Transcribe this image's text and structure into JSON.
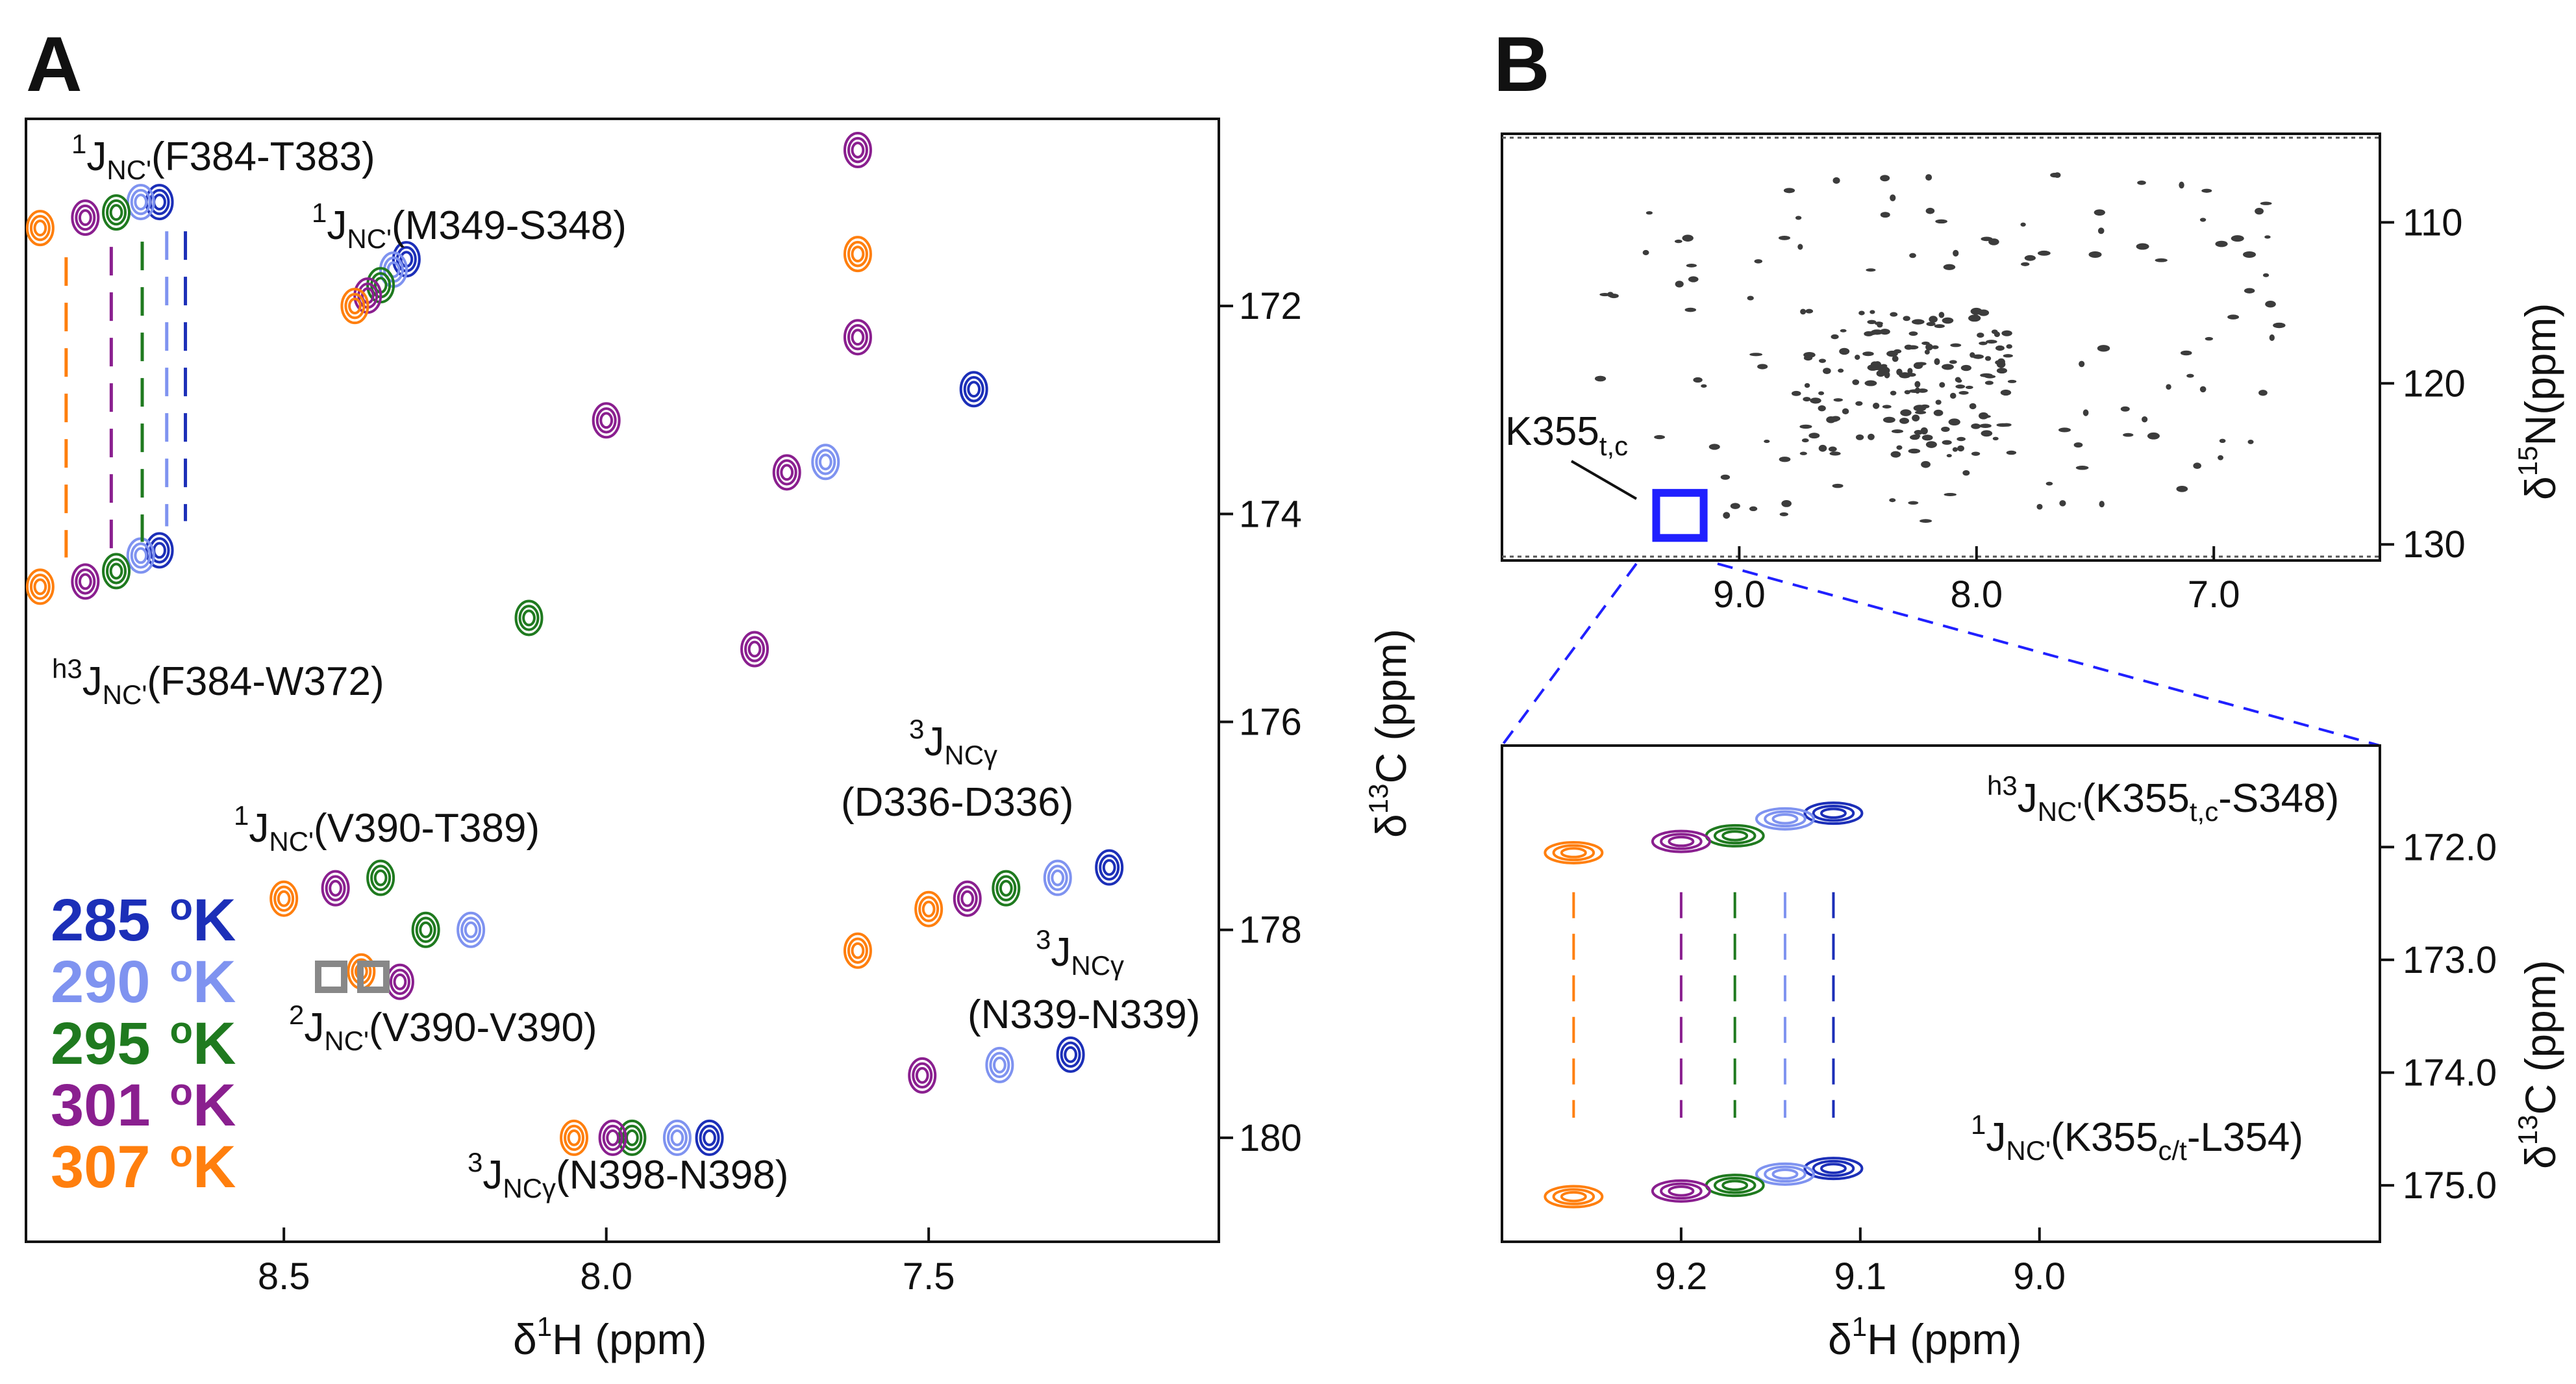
{
  "figure": {
    "panels": [
      {
        "letter": "A"
      },
      {
        "letter": "B"
      }
    ]
  },
  "colors": {
    "285": "#1c2fb8",
    "290": "#7f93f0",
    "295": "#1f7a1f",
    "301": "#8a1f8f",
    "307": "#ff7f0e",
    "overview": "#3c3c3c",
    "box": "#2020ff"
  },
  "legend": {
    "entries": [
      {
        "temp": "285",
        "unit": "K",
        "color": "#1c2fb8"
      },
      {
        "temp": "290",
        "unit": "K",
        "color": "#7f93f0"
      },
      {
        "temp": "295",
        "unit": "K",
        "color": "#1f7a1f"
      },
      {
        "temp": "301",
        "unit": "K",
        "color": "#8a1f8f"
      },
      {
        "temp": "307",
        "unit": "K",
        "color": "#ff7f0e"
      }
    ]
  },
  "panelA": {
    "annotations": {
      "f384_t383": {
        "sup": "1",
        "main": "J",
        "sub": "NC'",
        "rest": "(F384-T383)"
      },
      "m349_s348": {
        "sup": "1",
        "main": "J",
        "sub": "NC'",
        "rest": "(M349-S348)"
      },
      "f384_w372": {
        "sup": "h3",
        "main": "J",
        "sub": "NC'",
        "rest": "(F384-W372)"
      },
      "v390_t389": {
        "sup": "1",
        "main": "J",
        "sub": "NC'",
        "rest": "(V390-T389)"
      },
      "v390_v390": {
        "sup": "2",
        "main": "J",
        "sub": "NC'",
        "rest": "(V390-V390)"
      },
      "n398_n398": {
        "sup": "3",
        "main": "J",
        "sub": "NCγ",
        "rest": "(N398-N398)"
      },
      "d336_a": {
        "sup": "3",
        "main": "J",
        "sub": "NCγ"
      },
      "d336_b": {
        "rest": "(D336-D336)"
      },
      "n339_a": {
        "sup": "3",
        "main": "J",
        "sub": "NCγ"
      },
      "n339_b": {
        "rest": "(N339-N339)"
      }
    }
  },
  "panelB": {
    "overview_label": {
      "main": "K355",
      "sub": "t,c"
    },
    "annotations": {
      "k355_s348": {
        "sup": "h3",
        "main": "J",
        "sub": "NC'",
        "rest": "(K355",
        "sub2": "t,c",
        "rest2": "-S348)"
      },
      "k355_l354": {
        "sup": "1",
        "main": "J",
        "sub": "NC'",
        "rest": "(K355",
        "sub2": "c/t",
        "rest2": "-L354)"
      }
    }
  },
  "chart_data": [
    {
      "type": "scatter",
      "title": "A",
      "xlabel": {
        "pre": "δ",
        "sup": "1",
        "post": "H (ppm)"
      },
      "ylabel": {
        "pre": "δ",
        "sup": "13",
        "post": "C (ppm)"
      },
      "xlim": [
        8.9,
        7.05
      ],
      "ylim": [
        181.0,
        170.2
      ],
      "xticks": [
        8.5,
        8.0,
        7.5
      ],
      "xticklabels": [
        "8.5",
        "8.0",
        "7.5"
      ],
      "yticks": [
        172,
        174,
        176,
        178,
        180
      ],
      "yticklabels": [
        "172",
        "174",
        "176",
        "178",
        "180"
      ],
      "series": [
        {
          "name": "285 K",
          "color": "#1c2fb8",
          "points": [
            {
              "x": 8.693,
              "y": 171.0
            },
            {
              "x": 8.693,
              "y": 174.35
            },
            {
              "x": 8.31,
              "y": 171.55
            },
            {
              "x": 7.84,
              "y": 180.0
            },
            {
              "x": 7.22,
              "y": 177.4
            },
            {
              "x": 7.28,
              "y": 179.2
            },
            {
              "x": 7.43,
              "y": 172.8
            }
          ]
        },
        {
          "name": "290 K",
          "color": "#7f93f0",
          "points": [
            {
              "x": 8.722,
              "y": 171.0
            },
            {
              "x": 8.722,
              "y": 174.4
            },
            {
              "x": 8.33,
              "y": 171.65
            },
            {
              "x": 7.89,
              "y": 180.0
            },
            {
              "x": 7.3,
              "y": 177.5
            },
            {
              "x": 7.39,
              "y": 179.3
            },
            {
              "x": 7.66,
              "y": 173.5
            },
            {
              "x": 8.21,
              "y": 178.0
            }
          ]
        },
        {
          "name": "295 K",
          "color": "#1f7a1f",
          "points": [
            {
              "x": 8.76,
              "y": 171.1
            },
            {
              "x": 8.76,
              "y": 174.55
            },
            {
              "x": 8.35,
              "y": 171.8
            },
            {
              "x": 7.96,
              "y": 180.0
            },
            {
              "x": 7.38,
              "y": 177.6
            },
            {
              "x": 8.35,
              "y": 177.5
            },
            {
              "x": 8.12,
              "y": 175.0
            },
            {
              "x": 8.28,
              "y": 178.0
            }
          ]
        },
        {
          "name": "301 K",
          "color": "#8a1f8f",
          "points": [
            {
              "x": 8.808,
              "y": 171.15
            },
            {
              "x": 8.808,
              "y": 174.65
            },
            {
              "x": 8.37,
              "y": 171.9
            },
            {
              "x": 7.99,
              "y": 180.0
            },
            {
              "x": 7.44,
              "y": 177.7
            },
            {
              "x": 8.42,
              "y": 177.6
            },
            {
              "x": 7.77,
              "y": 175.3
            },
            {
              "x": 7.72,
              "y": 173.6
            },
            {
              "x": 7.61,
              "y": 170.5
            },
            {
              "x": 7.61,
              "y": 172.3
            },
            {
              "x": 7.51,
              "y": 179.4
            },
            {
              "x": 8.0,
              "y": 173.1
            },
            {
              "x": 8.32,
              "y": 178.5
            }
          ]
        },
        {
          "name": "307 K",
          "color": "#ff7f0e",
          "points": [
            {
              "x": 8.878,
              "y": 171.25
            },
            {
              "x": 8.878,
              "y": 174.7
            },
            {
              "x": 8.39,
              "y": 172.0
            },
            {
              "x": 8.05,
              "y": 180.0
            },
            {
              "x": 7.5,
              "y": 177.8
            },
            {
              "x": 8.5,
              "y": 177.7
            },
            {
              "x": 7.61,
              "y": 171.5
            },
            {
              "x": 7.61,
              "y": 178.2
            },
            {
              "x": 8.38,
              "y": 178.4
            }
          ]
        }
      ],
      "legend": "lower-left"
    },
    {
      "type": "scatter",
      "title": "B (overview)",
      "xlabel": "",
      "ylabel": {
        "pre": "δ",
        "sup": "15",
        "post": "N(ppm)"
      },
      "xlim": [
        10.0,
        6.3
      ],
      "ylim": [
        104.5,
        131.0
      ],
      "xticks": [
        9.0,
        8.0,
        7.0
      ],
      "xticklabels": [
        "9.0",
        "8.0",
        "7.0"
      ],
      "yticks": [
        110,
        120,
        130
      ],
      "yticklabels": [
        "110",
        "120",
        "130"
      ],
      "highlight_box": {
        "x": [
          9.35,
          9.15
        ],
        "y": [
          126.8,
          129.6
        ]
      }
    },
    {
      "type": "scatter",
      "title": "B (zoom)",
      "xlabel": {
        "pre": "δ",
        "sup": "1",
        "post": "H (ppm)"
      },
      "ylabel": {
        "pre": "δ",
        "sup": "13",
        "post": "C (ppm)"
      },
      "xlim": [
        9.3,
        8.81
      ],
      "ylim": [
        175.5,
        171.1
      ],
      "xticks": [
        9.2,
        9.1,
        9.0
      ],
      "xticklabels": [
        "9.2",
        "9.1",
        "9.0"
      ],
      "yticks": [
        172.0,
        173.0,
        174.0,
        175.0
      ],
      "yticklabels": [
        "172.0",
        "173.0",
        "174.0",
        "175.0"
      ],
      "series": [
        {
          "name": "285 K",
          "color": "#1c2fb8",
          "points": [
            {
              "x": 9.115,
              "y": 171.7
            },
            {
              "x": 9.115,
              "y": 174.85
            }
          ]
        },
        {
          "name": "290 K",
          "color": "#7f93f0",
          "points": [
            {
              "x": 9.142,
              "y": 171.75
            },
            {
              "x": 9.142,
              "y": 174.9
            }
          ]
        },
        {
          "name": "295 K",
          "color": "#1f7a1f",
          "points": [
            {
              "x": 9.17,
              "y": 171.9
            },
            {
              "x": 9.17,
              "y": 175.0
            }
          ]
        },
        {
          "name": "301 K",
          "color": "#8a1f8f",
          "points": [
            {
              "x": 9.2,
              "y": 171.95
            },
            {
              "x": 9.2,
              "y": 175.05
            }
          ]
        },
        {
          "name": "307 K",
          "color": "#ff7f0e",
          "points": [
            {
              "x": 9.26,
              "y": 172.05
            },
            {
              "x": 9.26,
              "y": 175.1
            }
          ]
        }
      ]
    }
  ]
}
